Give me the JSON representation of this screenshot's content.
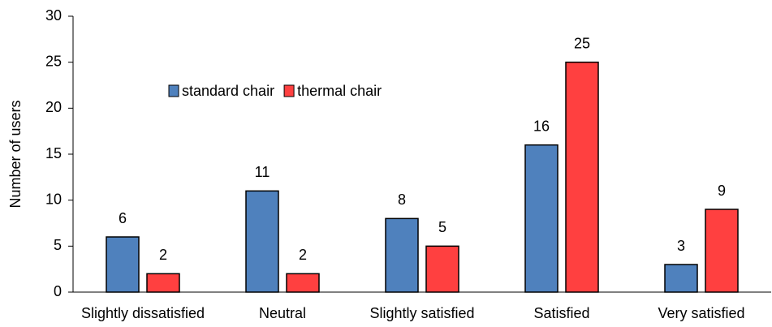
{
  "chart_data": {
    "type": "bar",
    "y_label": "Number of users",
    "categories": [
      "Slightly dissatisfied",
      "Neutral",
      "Slightly satisfied",
      "Satisfied",
      "Very satisfied"
    ],
    "series": [
      {
        "name": "standard chair",
        "color": "#4f81bd",
        "values": [
          6,
          11,
          8,
          16,
          3
        ]
      },
      {
        "name": "thermal chair",
        "color": "#ff4040",
        "values": [
          2,
          2,
          5,
          25,
          9
        ]
      }
    ],
    "ylim": [
      0,
      30
    ],
    "yticks": [
      0,
      5,
      10,
      15,
      20,
      25,
      30
    ],
    "grid": false,
    "legend": "upper left"
  }
}
